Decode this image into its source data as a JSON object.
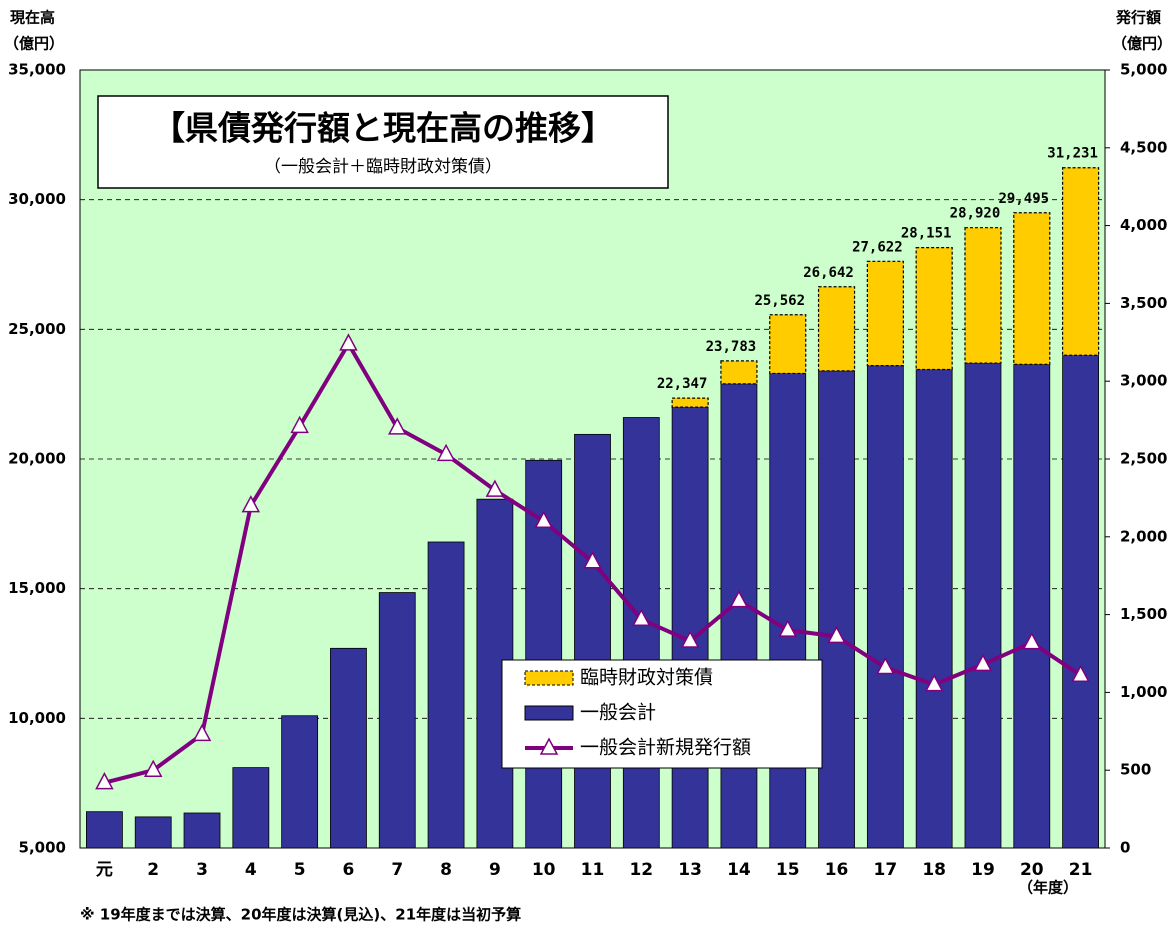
{
  "chart_data": {
    "type": "bar_line",
    "title": "【県債発行額と現在高の推移】",
    "subtitle": "（一般会計＋臨時財政対策債）",
    "y_label": [
      "現在高",
      "（億円）"
    ],
    "y2_label": [
      "発行額",
      "（億円）"
    ],
    "x_label": "（年度）",
    "footnote": "※ 19年度までは決算、20年度は決算(見込)、21年度は当初予算",
    "categories": [
      "元",
      "2",
      "3",
      "4",
      "5",
      "6",
      "7",
      "8",
      "9",
      "10",
      "11",
      "12",
      "13",
      "14",
      "15",
      "16",
      "17",
      "18",
      "19",
      "20",
      "21"
    ],
    "series": [
      {
        "name": "一般会計",
        "color": "#333399",
        "values": [
          6400,
          6200,
          6350,
          8100,
          10100,
          12700,
          14850,
          16800,
          18450,
          19950,
          20950,
          21600,
          22000,
          22900,
          23300,
          23400,
          23600,
          23450,
          23700,
          23650,
          24000
        ]
      },
      {
        "name": "臨時財政対策債",
        "color": "#ffcc00",
        "values": [
          null,
          null,
          null,
          null,
          null,
          null,
          null,
          null,
          null,
          null,
          null,
          null,
          347,
          883,
          2262,
          3242,
          4022,
          4701,
          5220,
          5845,
          7231
        ]
      },
      {
        "name": "一般会計新規発行額",
        "color": "#800080",
        "axis": "y2",
        "values": [
          420,
          500,
          730,
          2200,
          2710,
          3240,
          2700,
          2530,
          2300,
          2100,
          1840,
          1470,
          1330,
          1590,
          1400,
          1360,
          1160,
          1050,
          1180,
          1320,
          1110
        ]
      }
    ],
    "totals": [
      null,
      null,
      null,
      null,
      null,
      null,
      null,
      null,
      null,
      null,
      null,
      null,
      22347,
      23783,
      25562,
      26642,
      27622,
      28151,
      28920,
      29495,
      31231
    ],
    "total_labels": [
      null,
      null,
      null,
      null,
      null,
      null,
      null,
      null,
      null,
      null,
      null,
      null,
      "22,347",
      "23,783",
      "25,562",
      "26,642",
      "27,622",
      "28,151",
      "28,920",
      "29,495",
      "31,231"
    ],
    "ylim": [
      5000,
      35000
    ],
    "yticks": [
      {
        "value": 5000,
        "label": "5,000"
      },
      {
        "value": 10000,
        "label": "10,000"
      },
      {
        "value": 15000,
        "label": "15,000"
      },
      {
        "value": 20000,
        "label": "20,000"
      },
      {
        "value": 25000,
        "label": "25,000"
      },
      {
        "value": 30000,
        "label": "30,000"
      },
      {
        "value": 35000,
        "label": "35,000"
      }
    ],
    "y2lim": [
      0,
      5000
    ],
    "y2ticks": [
      0,
      500,
      {
        "value": 1000,
        "label": "1,000"
      },
      {
        "value": 1500,
        "label": "1,500"
      },
      {
        "value": 2000,
        "label": "2,000"
      },
      {
        "value": 2500,
        "label": "2,500"
      },
      {
        "value": 3000,
        "label": "3,000"
      },
      {
        "value": 3500,
        "label": "3,500"
      },
      {
        "value": 4000,
        "label": "4,000"
      },
      {
        "value": 4500,
        "label": "4,500"
      },
      {
        "value": 5000,
        "label": "5,000"
      }
    ],
    "grid": true,
    "background": "#ccffcc"
  }
}
